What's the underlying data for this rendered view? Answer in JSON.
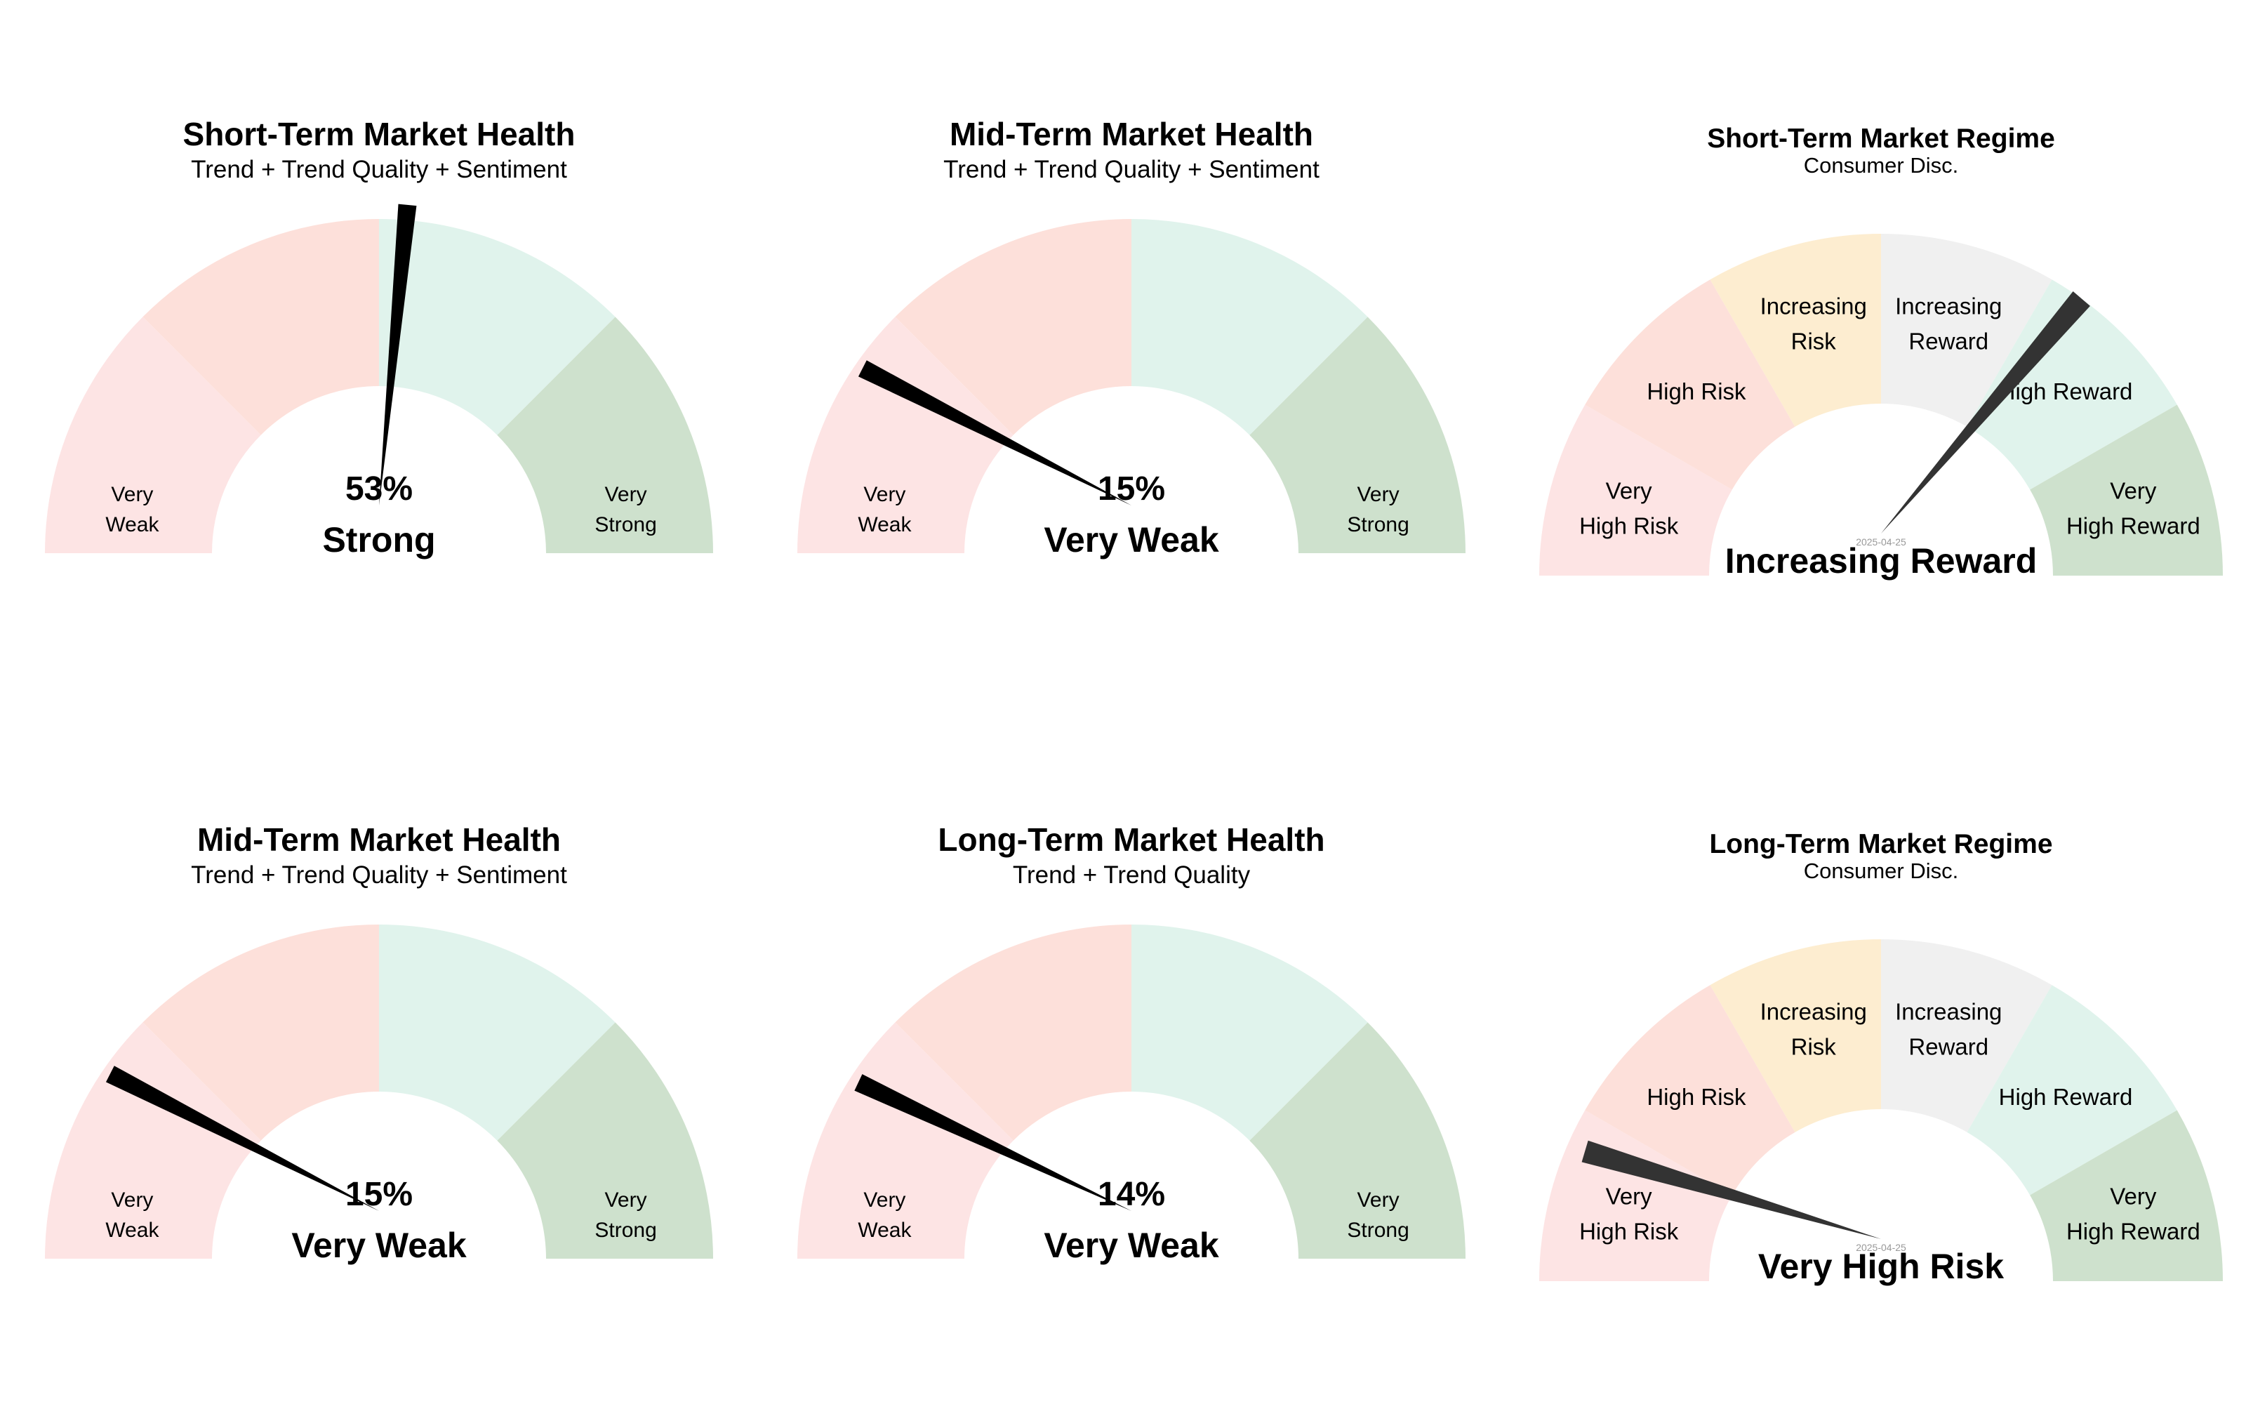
{
  "charts": {
    "colors": {
      "very_weak": "#fde4e4",
      "weak": "#fde0da",
      "strong": "#e0f3ec",
      "very_strong": "#cee1cd",
      "increasing_risk": "#fdedd0",
      "increasing_reward": "#f0f0f0",
      "needle_health": "#000000",
      "needle_regime": "#333333",
      "date_text": "#999999"
    }
  },
  "chart_data": [
    {
      "type": "gauge",
      "kind": "health",
      "title": "Short-Term Market Health",
      "subtitle": "Trend + Trend Quality + Sentiment",
      "value": 53,
      "value_label": "53%",
      "status": "Strong",
      "band_labels": [
        [
          "Very",
          "Weak"
        ],
        [
          "Very",
          "Strong"
        ]
      ]
    },
    {
      "type": "gauge",
      "kind": "health",
      "title": "Mid-Term Market Health",
      "subtitle": "Trend + Trend Quality + Sentiment",
      "value": 15,
      "value_label": "15%",
      "status": "Very Weak",
      "band_labels": [
        [
          "Very",
          "Weak"
        ],
        [
          "Very",
          "Strong"
        ]
      ]
    },
    {
      "type": "gauge",
      "kind": "regime",
      "title": "Short-Term Market Regime",
      "subtitle": "Consumer Disc.",
      "date": "2025-04-25",
      "value": 4.35,
      "status": "Increasing Reward",
      "band_labels": [
        [
          "Very",
          "High Risk"
        ],
        [
          "High Risk"
        ],
        [
          "Increasing",
          "Risk"
        ],
        [
          "Increasing",
          "Reward"
        ],
        [
          "High Reward"
        ],
        [
          "Very",
          "High Reward"
        ]
      ]
    },
    {
      "type": "gauge",
      "kind": "health",
      "title": "Mid-Term Market Health",
      "subtitle": "Trend + Trend Quality + Sentiment",
      "value": 15,
      "value_label": "15%",
      "status": "Very Weak",
      "band_labels": [
        [
          "Very",
          "Weak"
        ],
        [
          "Very",
          "Strong"
        ]
      ]
    },
    {
      "type": "gauge",
      "kind": "health",
      "title": "Long-Term Market Health",
      "subtitle": "Trend + Trend Quality",
      "value": 14,
      "value_label": "14%",
      "status": "Very Weak",
      "band_labels": [
        [
          "Very",
          "Weak"
        ],
        [
          "Very",
          "Strong"
        ]
      ]
    },
    {
      "type": "gauge",
      "kind": "regime",
      "title": "Long-Term Market Regime",
      "subtitle": "Consumer Disc.",
      "date": "2025-04-25",
      "value": 0.55,
      "status": "Very High Risk",
      "band_labels": [
        [
          "Very",
          "High Risk"
        ],
        [
          "High Risk"
        ],
        [
          "Increasing",
          "Risk"
        ],
        [
          "Increasing",
          "Reward"
        ],
        [
          "High Reward"
        ],
        [
          "Very",
          "High Reward"
        ]
      ]
    }
  ]
}
